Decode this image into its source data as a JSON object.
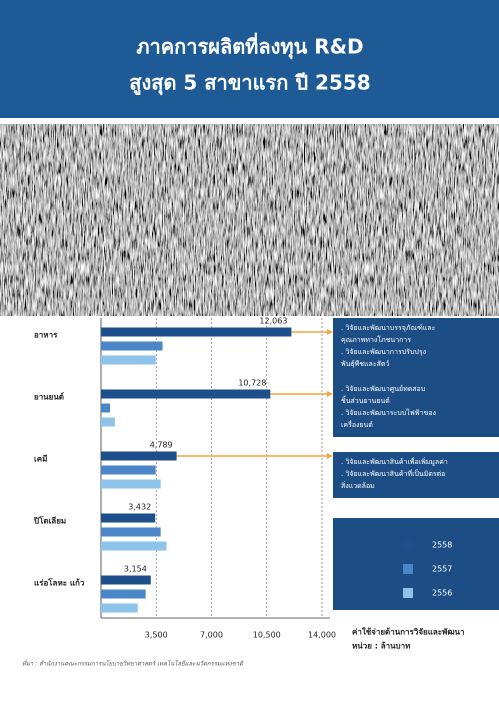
{
  "chart_data": {
    "type": "bar",
    "title": [
      "ภาคการผลิตที่ลงทุน R&D",
      "สูงสุด 5 สาขาแรก ปี 2558"
    ],
    "categories": [
      "อาหาร",
      "ยานยนต์",
      "เคมี",
      "ปิโตเลียม",
      "แร่อโลหะ แก้ว"
    ],
    "series": [
      {
        "name": "2558",
        "color": "#1d4f8a",
        "values": [
          12063,
          10728,
          4789,
          3432,
          3154
        ],
        "value_labels": [
          "12,063",
          "10,728",
          "4,789",
          "3,432",
          "3,154"
        ]
      },
      {
        "name": "2557",
        "color": "#4a86c8",
        "values": [
          3900,
          570,
          3460,
          3780,
          2830
        ]
      },
      {
        "name": "2556",
        "color": "#8ec3ea",
        "values": [
          3460,
          880,
          3780,
          4150,
          2330
        ]
      }
    ],
    "xlim": [
      0,
      14000
    ],
    "xticks": [
      {
        "value": 3500,
        "label": "3,500"
      },
      {
        "value": 7000,
        "label": "7,000"
      },
      {
        "value": 10500,
        "label": "10,500"
      },
      {
        "value": 14000,
        "label": "14,000"
      }
    ],
    "grid": true,
    "x_label": "ค่าใช้จ่ายด้านการวิจัยและพัฒนา",
    "unit": "หน่วย : ล้านบาท",
    "annotations": [
      [
        ". วิจัยและพัฒนาบรรจุภัณฑ์และ",
        "คุณภาพทางโภชนาการ",
        ". วิจัยและพัฒนาการปรับปรุง",
        "พันธุ์พืชและสัตว์"
      ],
      [
        ". วิจัยและพัฒนาศูนย์ทดสอบ",
        "ชิ้นส่วนยานยนต์",
        ". วิจัยและพัฒนาระบบไฟฟ้าของ",
        "เครื่องยนต์"
      ],
      [
        ". วิจัยและพัฒนาสินค้าเพื่อเพิ่มมูลค่า",
        ". วิจัยและพัฒนาสินค้าที่เป็นมิตรต่อ",
        "สิ่งแวดล้อม"
      ]
    ],
    "source": "ที่มา : สำนักงานคณะกรรมการนโยบายวิทยาศาสตร์ เทคโนโลยีและนวัตกรรมแห่งชาติ"
  }
}
